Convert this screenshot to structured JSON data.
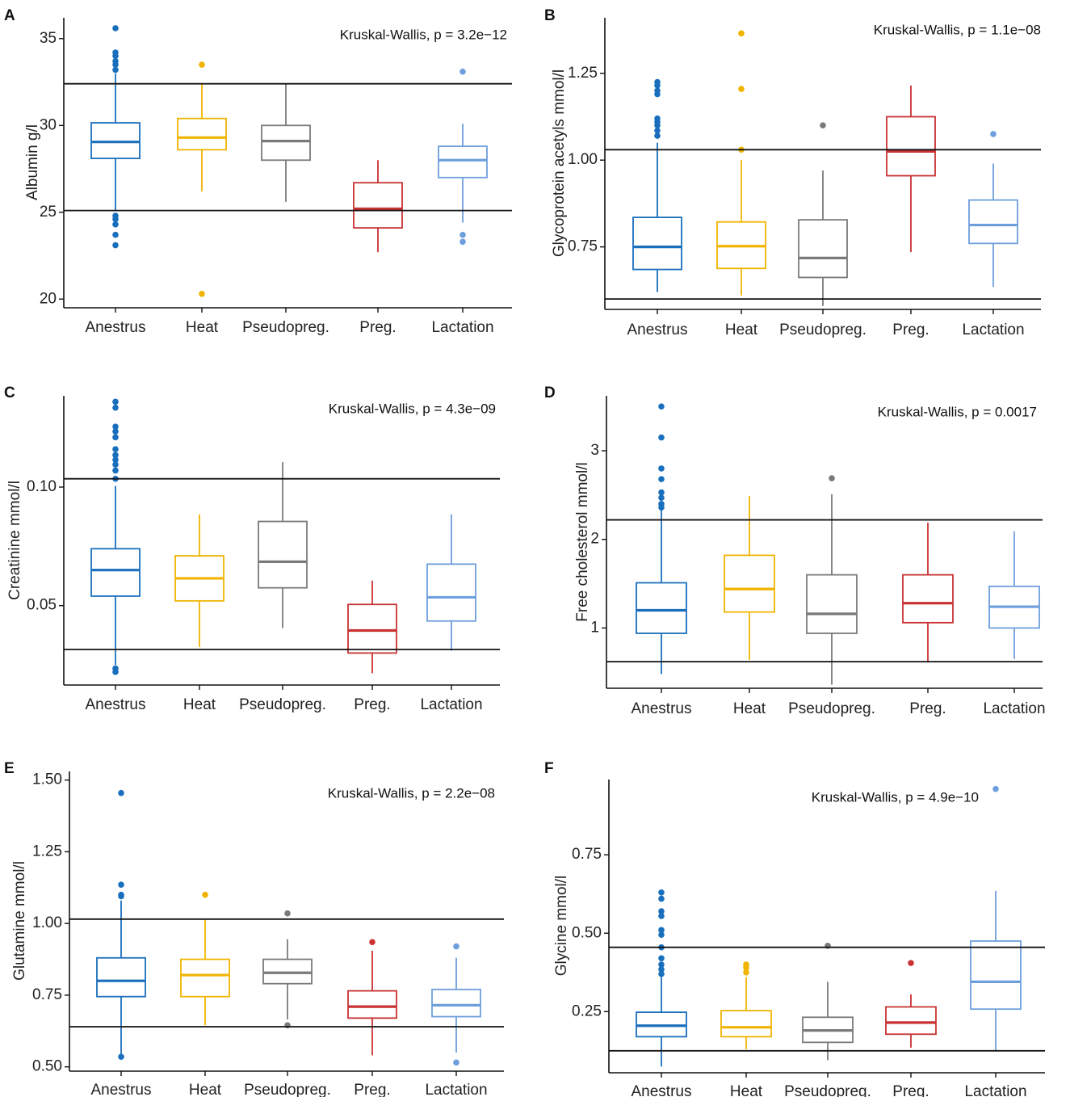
{
  "colors": {
    "Anestrus": "#1a6fbd",
    "Heat": "#f0b400",
    "Pseudopreg.": "#7a7a7a",
    "Preg.": "#c83232",
    "Lactation": "#6e9fdc",
    "axis": "#111111"
  },
  "chart_data": [
    {
      "panel": "A",
      "type": "box",
      "ylabel": "Albumin g/l",
      "ylim": [
        19.5,
        36.2
      ],
      "yticks": [
        20,
        25,
        30,
        35
      ],
      "ytick_labels": [
        "20",
        "25",
        "30",
        "35"
      ],
      "annotation": "Kruskal-Wallis, p = 3.2e−12",
      "reference_lines": [
        25.1,
        32.4
      ],
      "categories": [
        "Anestrus",
        "Heat",
        "Pseudopreg.",
        "Preg.",
        "Lactation"
      ],
      "boxes": [
        {
          "group": "Anestrus",
          "q1": 28.1,
          "median": 29.05,
          "q3": 30.15,
          "whisker_low": 25.1,
          "whisker_high": 33.0,
          "outliers": [
            35.6,
            34.2,
            34.0,
            33.7,
            33.5,
            33.2,
            24.8,
            24.6,
            24.3,
            23.7,
            23.1
          ]
        },
        {
          "group": "Heat",
          "q1": 28.6,
          "median": 29.3,
          "q3": 30.4,
          "whisker_low": 26.2,
          "whisker_high": 32.4,
          "outliers": [
            33.5,
            20.3
          ]
        },
        {
          "group": "Pseudopreg.",
          "q1": 28.0,
          "median": 29.1,
          "q3": 30.0,
          "whisker_low": 25.6,
          "whisker_high": 32.4,
          "outliers": []
        },
        {
          "group": "Preg.",
          "q1": 24.1,
          "median": 25.2,
          "q3": 26.7,
          "whisker_low": 22.7,
          "whisker_high": 28.0,
          "outliers": []
        },
        {
          "group": "Lactation",
          "q1": 27.0,
          "median": 28.0,
          "q3": 28.8,
          "whisker_low": 24.4,
          "whisker_high": 30.1,
          "outliers": [
            33.1,
            23.7,
            23.3
          ]
        }
      ]
    },
    {
      "panel": "B",
      "type": "box",
      "ylabel": "Glycoprotein acetyls mmol/l",
      "ylim": [
        0.57,
        1.41
      ],
      "yticks": [
        0.75,
        1.0,
        1.25
      ],
      "ytick_labels": [
        "0.75",
        "1.00",
        "1.25"
      ],
      "annotation": "Kruskal-Wallis, p = 1.1e−08",
      "reference_lines": [
        0.6,
        1.03
      ],
      "categories": [
        "Anestrus",
        "Heat",
        "Pseudopreg.",
        "Preg.",
        "Lactation"
      ],
      "boxes": [
        {
          "group": "Anestrus",
          "q1": 0.685,
          "median": 0.75,
          "q3": 0.835,
          "whisker_low": 0.62,
          "whisker_high": 1.05,
          "outliers": [
            1.225,
            1.215,
            1.2,
            1.19,
            1.12,
            1.11,
            1.1,
            1.085,
            1.07
          ]
        },
        {
          "group": "Heat",
          "q1": 0.688,
          "median": 0.752,
          "q3": 0.822,
          "whisker_low": 0.61,
          "whisker_high": 1.0,
          "outliers": [
            1.365,
            1.205,
            1.03
          ]
        },
        {
          "group": "Pseudopreg.",
          "q1": 0.662,
          "median": 0.718,
          "q3": 0.828,
          "whisker_low": 0.58,
          "whisker_high": 0.97,
          "outliers": [
            1.1
          ]
        },
        {
          "group": "Preg.",
          "q1": 0.955,
          "median": 1.025,
          "q3": 1.125,
          "whisker_low": 0.735,
          "whisker_high": 1.215,
          "outliers": []
        },
        {
          "group": "Lactation",
          "q1": 0.76,
          "median": 0.813,
          "q3": 0.885,
          "whisker_low": 0.635,
          "whisker_high": 0.99,
          "outliers": [
            1.075
          ]
        }
      ]
    },
    {
      "panel": "C",
      "type": "box",
      "ylabel": "Creatinine mmol/l",
      "ylim": [
        0.0165,
        0.1385
      ],
      "yticks": [
        0.05,
        0.1
      ],
      "ytick_labels": [
        "0.05",
        "0.10"
      ],
      "annotation": "Kruskal-Wallis, p = 4.3e−09",
      "reference_lines": [
        0.0315,
        0.1035
      ],
      "categories": [
        "Anestrus",
        "Heat",
        "Pseudopreg.",
        "Preg.",
        "Lactation"
      ],
      "boxes": [
        {
          "group": "Anestrus",
          "q1": 0.054,
          "median": 0.065,
          "q3": 0.074,
          "whisker_low": 0.025,
          "whisker_high": 0.1005,
          "outliers": [
            0.136,
            0.1335,
            0.1255,
            0.1235,
            0.121,
            0.116,
            0.1135,
            0.1115,
            0.1095,
            0.107,
            0.1035,
            0.0235,
            0.022
          ]
        },
        {
          "group": "Heat",
          "q1": 0.052,
          "median": 0.0615,
          "q3": 0.071,
          "whisker_low": 0.0325,
          "whisker_high": 0.0885,
          "outliers": []
        },
        {
          "group": "Pseudopreg.",
          "q1": 0.0575,
          "median": 0.0685,
          "q3": 0.0855,
          "whisker_low": 0.0405,
          "whisker_high": 0.1105,
          "outliers": []
        },
        {
          "group": "Preg.",
          "q1": 0.03,
          "median": 0.0395,
          "q3": 0.0505,
          "whisker_low": 0.0215,
          "whisker_high": 0.0605,
          "outliers": []
        },
        {
          "group": "Lactation",
          "q1": 0.0435,
          "median": 0.0535,
          "q3": 0.0675,
          "whisker_low": 0.031,
          "whisker_high": 0.0885,
          "outliers": []
        }
      ]
    },
    {
      "panel": "D",
      "type": "box",
      "ylabel": "Free cholesterol mmol/l",
      "ylim": [
        0.32,
        3.62
      ],
      "yticks": [
        1,
        2,
        3
      ],
      "ytick_labels": [
        "1",
        "2",
        "3"
      ],
      "annotation": "Kruskal-Wallis, p = 0.0017",
      "reference_lines": [
        0.62,
        2.22
      ],
      "categories": [
        "Anestrus",
        "Heat",
        "Pseudopreg.",
        "Preg.",
        "Lactation"
      ],
      "boxes": [
        {
          "group": "Anestrus",
          "q1": 0.94,
          "median": 1.2,
          "q3": 1.51,
          "whisker_low": 0.48,
          "whisker_high": 2.33,
          "outliers": [
            3.5,
            3.15,
            2.8,
            2.68,
            2.53,
            2.47,
            2.4,
            2.36
          ]
        },
        {
          "group": "Heat",
          "q1": 1.18,
          "median": 1.44,
          "q3": 1.82,
          "whisker_low": 0.64,
          "whisker_high": 2.49,
          "outliers": []
        },
        {
          "group": "Pseudopreg.",
          "q1": 0.94,
          "median": 1.16,
          "q3": 1.6,
          "whisker_low": 0.36,
          "whisker_high": 2.51,
          "outliers": [
            2.69
          ]
        },
        {
          "group": "Preg.",
          "q1": 1.06,
          "median": 1.28,
          "q3": 1.6,
          "whisker_low": 0.61,
          "whisker_high": 2.19,
          "outliers": []
        },
        {
          "group": "Lactation",
          "q1": 1.0,
          "median": 1.24,
          "q3": 1.47,
          "whisker_low": 0.65,
          "whisker_high": 2.09,
          "outliers": []
        }
      ]
    },
    {
      "panel": "E",
      "type": "box",
      "ylabel": "Glutamine mmol/l",
      "ylim": [
        0.485,
        1.53
      ],
      "yticks": [
        0.5,
        0.75,
        1.0,
        1.25,
        1.5
      ],
      "ytick_labels": [
        "0.50",
        "0.75",
        "1.00",
        "1.25",
        "1.50"
      ],
      "annotation": "Kruskal-Wallis, p = 2.2e−08",
      "reference_lines": [
        0.64,
        1.015
      ],
      "categories": [
        "Anestrus",
        "Heat",
        "Pseudopreg.",
        "Preg.",
        "Lactation"
      ],
      "boxes": [
        {
          "group": "Anestrus",
          "q1": 0.745,
          "median": 0.8,
          "q3": 0.88,
          "whisker_low": 0.545,
          "whisker_high": 1.08,
          "outliers": [
            1.455,
            1.135,
            1.1,
            1.095,
            0.535
          ]
        },
        {
          "group": "Heat",
          "q1": 0.745,
          "median": 0.82,
          "q3": 0.875,
          "whisker_low": 0.645,
          "whisker_high": 1.015,
          "outliers": [
            1.1
          ]
        },
        {
          "group": "Pseudopreg.",
          "q1": 0.79,
          "median": 0.828,
          "q3": 0.875,
          "whisker_low": 0.665,
          "whisker_high": 0.945,
          "outliers": [
            1.035,
            0.645
          ]
        },
        {
          "group": "Preg.",
          "q1": 0.67,
          "median": 0.71,
          "q3": 0.765,
          "whisker_low": 0.54,
          "whisker_high": 0.905,
          "outliers": [
            0.935
          ]
        },
        {
          "group": "Lactation",
          "q1": 0.675,
          "median": 0.715,
          "q3": 0.77,
          "whisker_low": 0.55,
          "whisker_high": 0.88,
          "outliers": [
            0.92,
            0.515
          ]
        }
      ]
    },
    {
      "panel": "F",
      "type": "box",
      "ylabel": "Glycine mmol/l",
      "ylim": [
        0.055,
        0.99
      ],
      "yticks": [
        0.25,
        0.5,
        0.75
      ],
      "ytick_labels": [
        "0.25",
        "0.50",
        "0.75"
      ],
      "annotation": "Kruskal-Wallis, p = 4.9e−10",
      "reference_lines": [
        0.125,
        0.455
      ],
      "categories": [
        "Anestrus",
        "Heat",
        "Pseudopreg.",
        "Preg.",
        "Lactation"
      ],
      "boxes": [
        {
          "group": "Anestrus",
          "q1": 0.17,
          "median": 0.205,
          "q3": 0.248,
          "whisker_low": 0.075,
          "whisker_high": 0.36,
          "outliers": [
            0.63,
            0.61,
            0.57,
            0.555,
            0.51,
            0.495,
            0.455,
            0.42,
            0.4,
            0.385,
            0.37
          ]
        },
        {
          "group": "Heat",
          "q1": 0.17,
          "median": 0.2,
          "q3": 0.253,
          "whisker_low": 0.13,
          "whisker_high": 0.36,
          "outliers": [
            0.4,
            0.39,
            0.375
          ]
        },
        {
          "group": "Pseudopreg.",
          "q1": 0.152,
          "median": 0.19,
          "q3": 0.232,
          "whisker_low": 0.095,
          "whisker_high": 0.345,
          "outliers": [
            0.46
          ]
        },
        {
          "group": "Preg.",
          "q1": 0.178,
          "median": 0.215,
          "q3": 0.265,
          "whisker_low": 0.135,
          "whisker_high": 0.305,
          "outliers": [
            0.405
          ]
        },
        {
          "group": "Lactation",
          "q1": 0.258,
          "median": 0.345,
          "q3": 0.475,
          "whisker_low": 0.125,
          "whisker_high": 0.635,
          "outliers": [
            0.96
          ]
        }
      ]
    }
  ]
}
